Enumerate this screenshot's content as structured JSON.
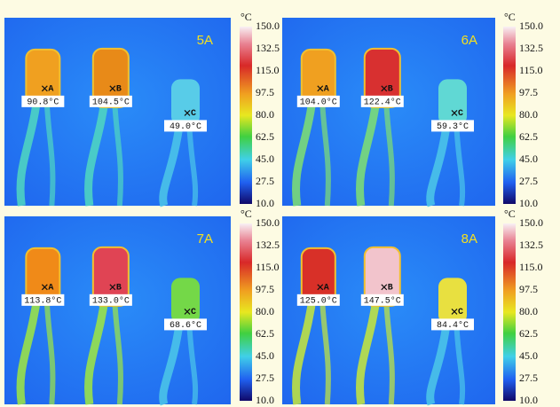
{
  "colorbar": {
    "unit": "°C",
    "ticks": [
      "150.0",
      "132.5",
      "115.0",
      "97.5",
      "80.0",
      "62.5",
      "45.0",
      "27.5",
      "10.0"
    ]
  },
  "panels": [
    {
      "current": "5A",
      "points": [
        {
          "marker": "A",
          "reading": "90.8°C"
        },
        {
          "marker": "B",
          "reading": "104.5°C"
        },
        {
          "marker": "C",
          "reading": "49.0°C"
        }
      ]
    },
    {
      "current": "6A",
      "points": [
        {
          "marker": "A",
          "reading": "104.0°C"
        },
        {
          "marker": "B",
          "reading": "122.4°C"
        },
        {
          "marker": "C",
          "reading": "59.3°C"
        }
      ]
    },
    {
      "current": "7A",
      "points": [
        {
          "marker": "A",
          "reading": "113.8°C"
        },
        {
          "marker": "B",
          "reading": "133.0°C"
        },
        {
          "marker": "C",
          "reading": "68.6°C"
        }
      ]
    },
    {
      "current": "8A",
      "points": [
        {
          "marker": "A",
          "reading": "125.0°C"
        },
        {
          "marker": "B",
          "reading": "147.5°C"
        },
        {
          "marker": "C",
          "reading": "84.4°C"
        }
      ]
    }
  ]
}
